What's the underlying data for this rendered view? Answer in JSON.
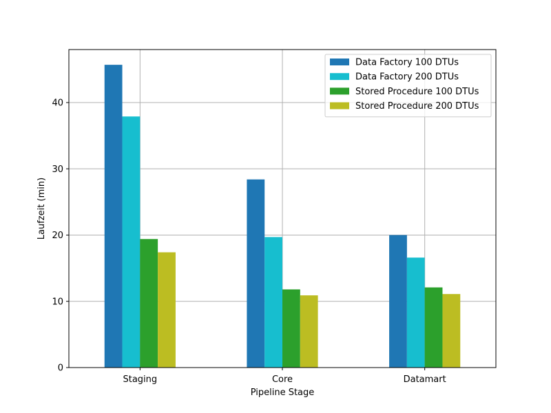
{
  "chart_data": {
    "type": "bar",
    "title": "",
    "xlabel": "Pipeline Stage",
    "ylabel": "Laufzeit (min)",
    "categories": [
      "Staging",
      "Core",
      "Datamart"
    ],
    "ylim": [
      0,
      48
    ],
    "yticks": [
      0,
      10,
      20,
      30,
      40
    ],
    "grid": true,
    "legend_position": "top-right",
    "series": [
      {
        "name": "Data Factory 100 DTUs",
        "color": "#1f77b4",
        "values": [
          45.7,
          28.4,
          20.0
        ]
      },
      {
        "name": "Data Factory 200 DTUs",
        "color": "#17becf",
        "values": [
          37.9,
          19.7,
          16.6
        ]
      },
      {
        "name": "Stored Procedure 100 DTUs",
        "color": "#2ca02c",
        "values": [
          19.4,
          11.8,
          12.1
        ]
      },
      {
        "name": "Stored Procedure 200 DTUs",
        "color": "#bcbd22",
        "values": [
          17.4,
          10.9,
          11.1
        ]
      }
    ]
  }
}
